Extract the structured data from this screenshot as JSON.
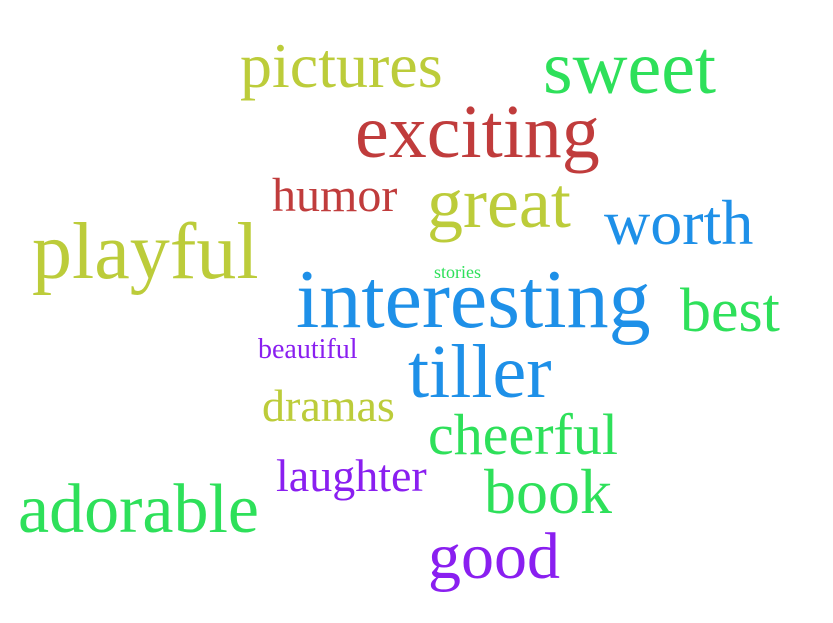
{
  "colors": {
    "olive": "#bccc3a",
    "green": "#2ee05a",
    "red": "#c03c3c",
    "blue": "#1e90e8",
    "purple": "#8a1ff0"
  },
  "words": [
    {
      "text": "pictures",
      "color": "olive"
    },
    {
      "text": "sweet",
      "color": "green"
    },
    {
      "text": "exciting",
      "color": "red"
    },
    {
      "text": "humor",
      "color": "red"
    },
    {
      "text": "great",
      "color": "olive"
    },
    {
      "text": "worth",
      "color": "blue"
    },
    {
      "text": "playful",
      "color": "olive"
    },
    {
      "text": "stories",
      "color": "green"
    },
    {
      "text": "interesting",
      "color": "blue"
    },
    {
      "text": "best",
      "color": "green"
    },
    {
      "text": "beautiful",
      "color": "purple"
    },
    {
      "text": "tiller",
      "color": "blue"
    },
    {
      "text": "dramas",
      "color": "olive"
    },
    {
      "text": "cheerful",
      "color": "green"
    },
    {
      "text": "laughter",
      "color": "purple"
    },
    {
      "text": "book",
      "color": "green"
    },
    {
      "text": "adorable",
      "color": "green"
    },
    {
      "text": "good",
      "color": "purple"
    }
  ]
}
